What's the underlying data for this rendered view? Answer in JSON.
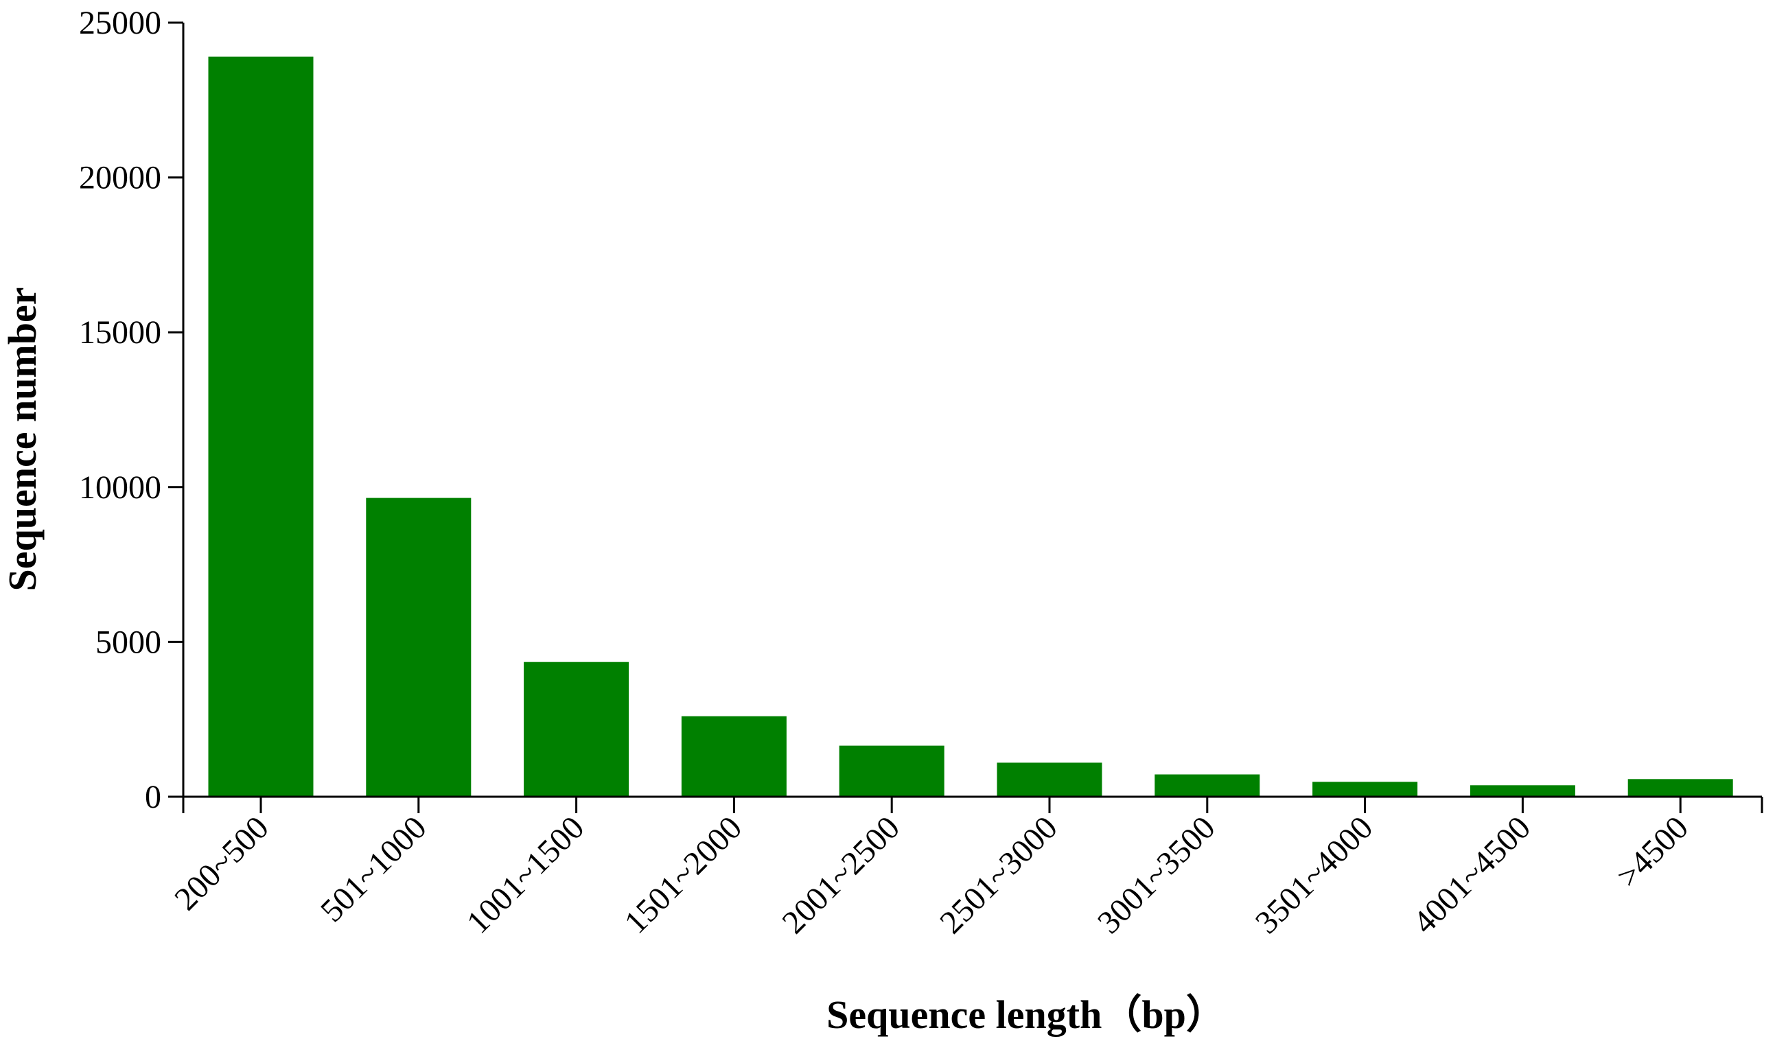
{
  "chart_data": {
    "type": "bar",
    "title": "",
    "xlabel": "Sequence length（bp）",
    "ylabel": "Sequence number",
    "categories": [
      "200~500",
      "501~1000",
      "1001~1500",
      "1501~2000",
      "2001~2500",
      "2501~3000",
      "3001~3500",
      "3501~4000",
      "4001~4500",
      ">4500"
    ],
    "values": [
      23900,
      9650,
      4350,
      2600,
      1650,
      1100,
      720,
      480,
      370,
      570
    ],
    "ylim": [
      0,
      25000
    ],
    "yticks": [
      "0",
      "5000",
      "10000",
      "15000",
      "20000",
      "25000"
    ],
    "grid": false,
    "legend": "none",
    "colors": {
      "bar": "#008000",
      "axis": "#000000"
    }
  }
}
